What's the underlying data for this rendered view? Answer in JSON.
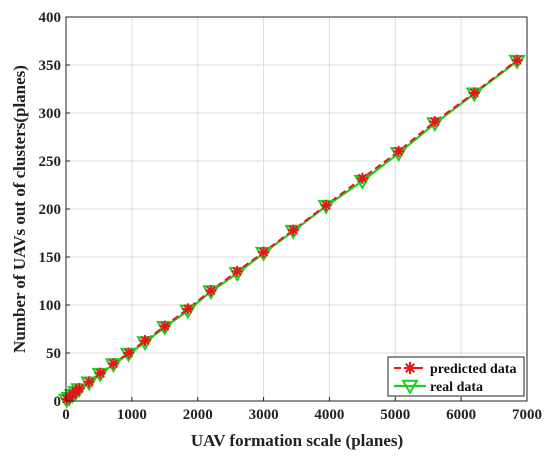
{
  "chart_data": {
    "type": "line",
    "xlabel": "UAV formation scale (planes)",
    "ylabel": "Number of UAVs out of clusters(planes)",
    "xlim": [
      0,
      7000
    ],
    "ylim": [
      0,
      400
    ],
    "xticks": [
      0,
      1000,
      2000,
      3000,
      4000,
      5000,
      6000,
      7000
    ],
    "yticks": [
      0,
      50,
      100,
      150,
      200,
      250,
      300,
      350,
      400
    ],
    "grid": true,
    "legend_position": "bottom-right",
    "series": [
      {
        "name": "predicted data",
        "color": "#e8141b",
        "marker": "asterisk",
        "x": [
          10,
          50,
          100,
          150,
          200,
          350,
          520,
          720,
          950,
          1200,
          1500,
          1850,
          2200,
          2600,
          3000,
          3450,
          3950,
          4500,
          5050,
          5600,
          6200,
          6850
        ],
        "y": [
          2,
          4,
          7,
          10,
          13,
          20,
          29,
          39,
          50,
          63,
          78,
          96,
          115,
          135,
          155,
          178,
          204,
          232,
          260,
          291,
          321,
          355
        ]
      },
      {
        "name": "real data",
        "color": "#22cc22",
        "marker": "triangle-down",
        "x": [
          10,
          50,
          100,
          150,
          200,
          350,
          520,
          720,
          950,
          1200,
          1500,
          1850,
          2200,
          2600,
          3000,
          3450,
          3950,
          4500,
          5050,
          5600,
          6200,
          6850
        ],
        "y": [
          1,
          3,
          6,
          9,
          12,
          19,
          28,
          38,
          49,
          61,
          77,
          94,
          114,
          133,
          154,
          177,
          203,
          229,
          258,
          289,
          320,
          354
        ]
      }
    ]
  }
}
